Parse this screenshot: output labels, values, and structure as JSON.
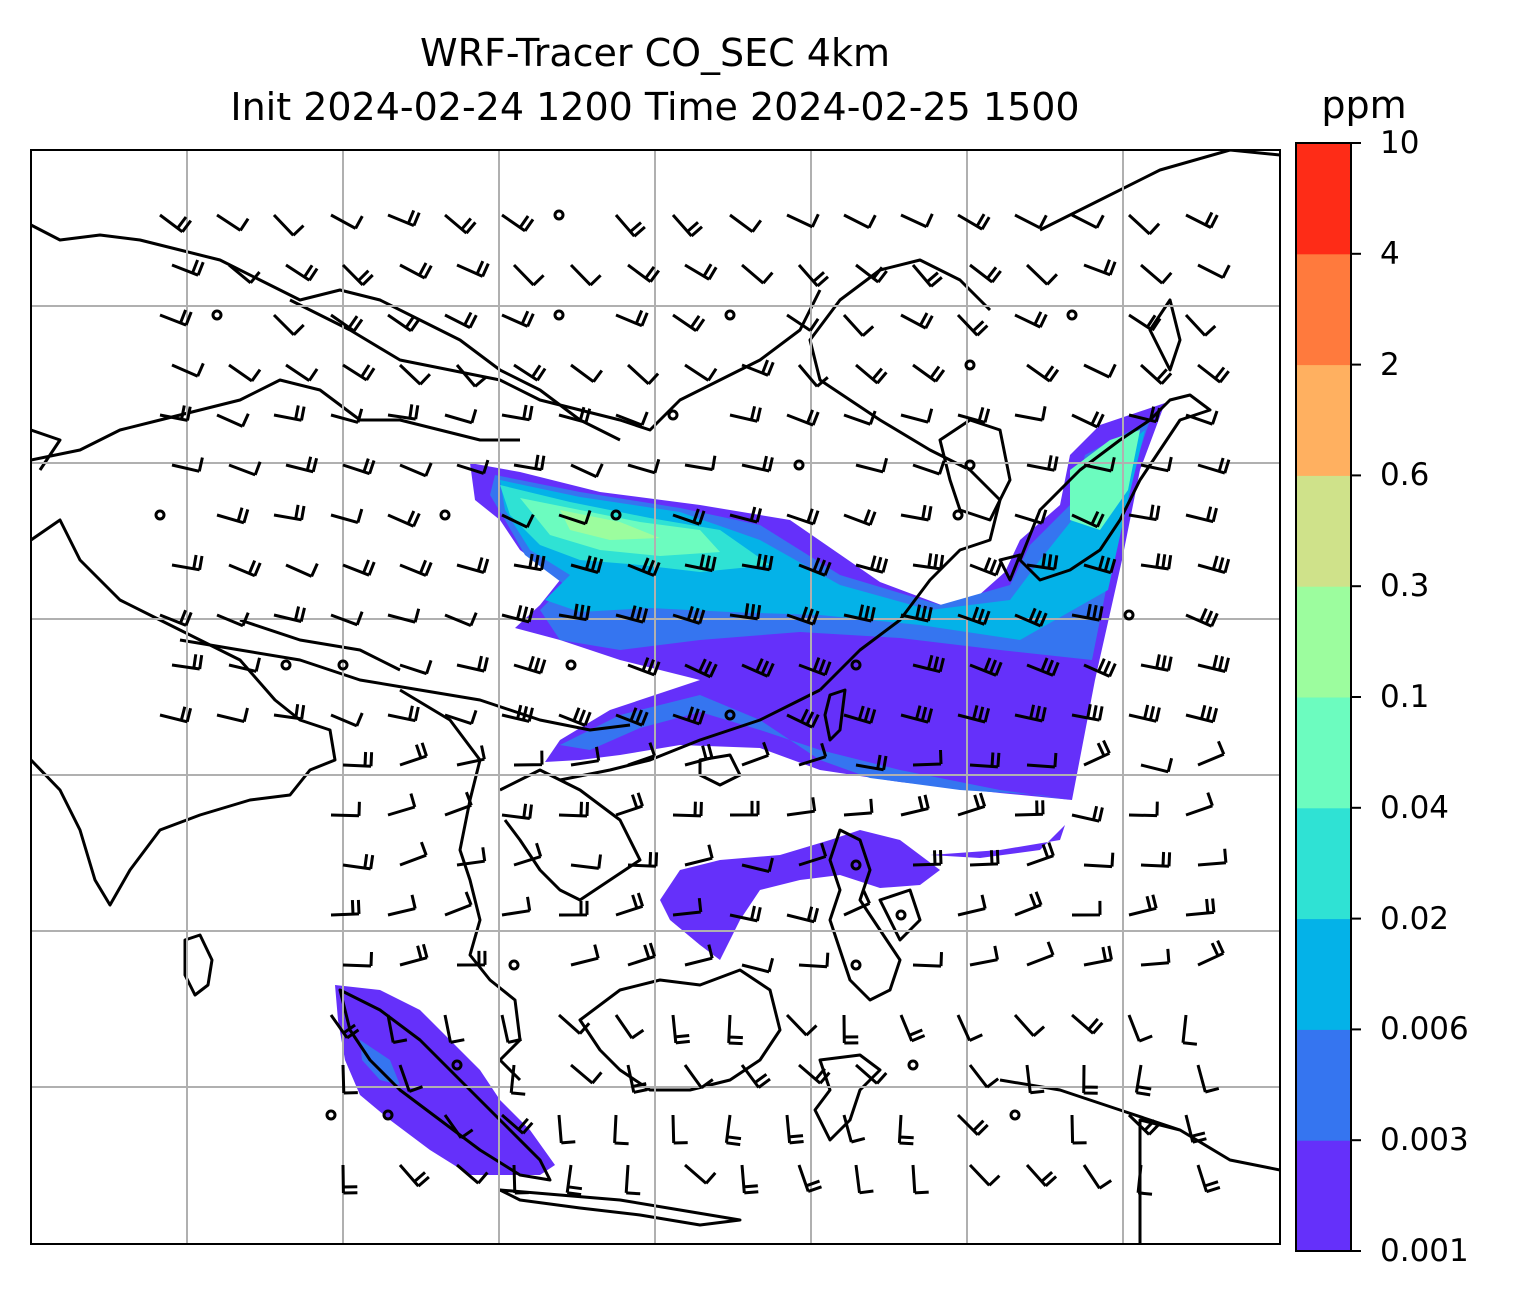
{
  "title": {
    "line1": "WRF-Tracer CO_SEC 4km",
    "line2": "Init 2024-02-24 1200 Time 2024-02-25 1500"
  },
  "colorbar": {
    "unit": "ppm",
    "levels": [
      0.001,
      0.003,
      0.006,
      0.02,
      0.04,
      0.1,
      0.3,
      0.6,
      2,
      4,
      10
    ],
    "tick_labels": [
      "0.001",
      "0.003",
      "0.006",
      "0.02",
      "0.04",
      "0.1",
      "0.3",
      "0.6",
      "2",
      "4",
      "10"
    ],
    "colors": [
      "#6530fa",
      "#3575f0",
      "#04b2e8",
      "#2fe2d4",
      "#6cfcbf",
      "#9cfd9e",
      "#cfe28a",
      "#ffb060",
      "#ff7a3d",
      "#fe2c17"
    ]
  },
  "map": {
    "gridlines": true,
    "grid_color": "#b0b0b0",
    "coastline_color": "#000000",
    "overlay": "wind barbs"
  }
}
